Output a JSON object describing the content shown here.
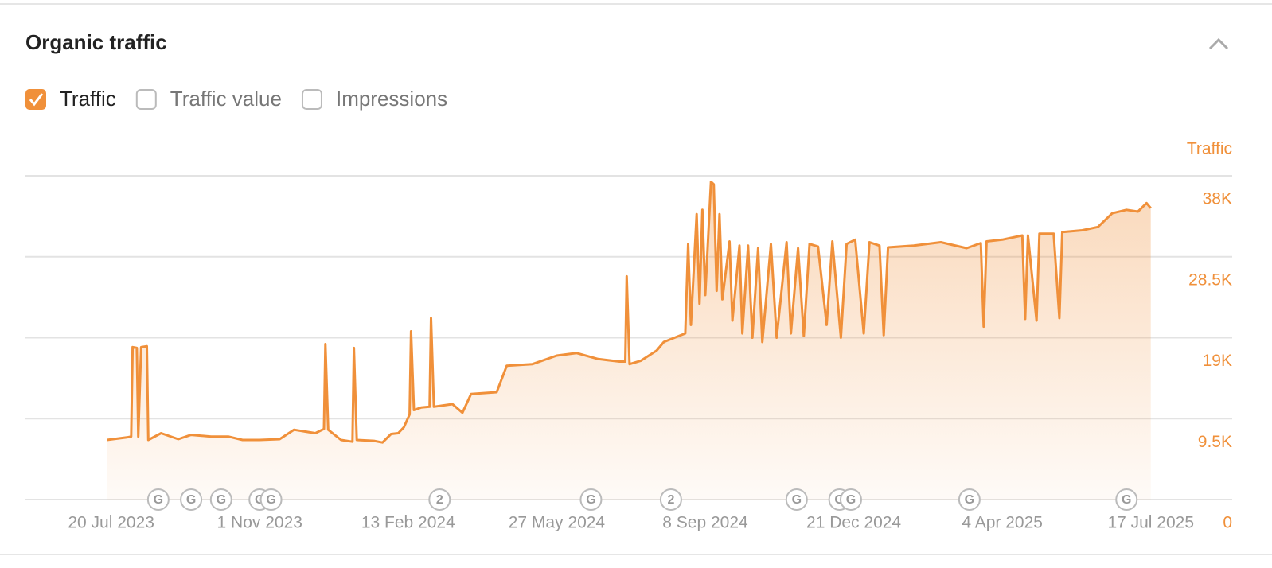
{
  "chart_data": {
    "type": "area",
    "title": "Organic traffic",
    "controls": [
      {
        "label": "Traffic",
        "checked": true
      },
      {
        "label": "Traffic value",
        "checked": false
      },
      {
        "label": "Impressions",
        "checked": false
      }
    ],
    "y_label": "Traffic",
    "color": "#f0903a",
    "grid": true,
    "ylim": [
      0,
      38000
    ],
    "yticks": [
      0,
      {
        "value": 9500,
        "label": "9.5K"
      },
      {
        "value": 19000,
        "label": "19K"
      },
      {
        "value": 28500,
        "label": "28.5K"
      },
      {
        "value": 38000,
        "label": "38K"
      }
    ],
    "xlim": [
      "2023-05-21",
      "2025-09-12"
    ],
    "xticks": [
      {
        "value": "2023-07-20",
        "label": "20 Jul 2023"
      },
      {
        "value": "2023-11-01",
        "label": "1 Nov 2023"
      },
      {
        "value": "2024-02-13",
        "label": "13 Feb 2024"
      },
      {
        "value": "2024-05-27",
        "label": "27 May 2024"
      },
      {
        "value": "2024-09-08",
        "label": "8 Sep 2024"
      },
      {
        "value": "2024-12-21",
        "label": "21 Dec 2024"
      },
      {
        "value": "2025-04-04",
        "label": "4 Apr 2025"
      },
      {
        "value": "2025-07-17",
        "label": "17 Jul 2025"
      }
    ],
    "annotations": [
      {
        "x": "2023-08-22",
        "label": "G"
      },
      {
        "x": "2023-09-14",
        "label": "G"
      },
      {
        "x": "2023-10-05",
        "label": "G"
      },
      {
        "x": "2023-11-01",
        "label": "G"
      },
      {
        "x": "2023-11-09",
        "label": "G"
      },
      {
        "x": "2024-03-06",
        "label": "2"
      },
      {
        "x": "2024-06-20",
        "label": "G"
      },
      {
        "x": "2024-08-15",
        "label": "2"
      },
      {
        "x": "2024-11-11",
        "label": "G"
      },
      {
        "x": "2024-12-11",
        "label": "G"
      },
      {
        "x": "2024-12-19",
        "label": "G"
      },
      {
        "x": "2025-03-12",
        "label": "G"
      },
      {
        "x": "2025-06-30",
        "label": "G"
      }
    ],
    "x": [
      "2023-07-17",
      "2023-07-24",
      "2023-07-31",
      "2023-08-03",
      "2023-08-04",
      "2023-08-07",
      "2023-08-08",
      "2023-08-10",
      "2023-08-14",
      "2023-08-15",
      "2023-08-24",
      "2023-09-05",
      "2023-09-14",
      "2023-09-28",
      "2023-10-10",
      "2023-10-20",
      "2023-11-01",
      "2023-11-15",
      "2023-11-25",
      "2023-12-10",
      "2023-12-16",
      "2023-12-17",
      "2023-12-19",
      "2023-12-28",
      "2024-01-05",
      "2024-01-06",
      "2024-01-08",
      "2024-01-20",
      "2024-01-26",
      "2024-02-01",
      "2024-02-06",
      "2024-02-10",
      "2024-02-14",
      "2024-02-15",
      "2024-02-17",
      "2024-02-22",
      "2024-02-28",
      "2024-02-29",
      "2024-03-02",
      "2024-03-15",
      "2024-03-22",
      "2024-03-28",
      "2024-04-15",
      "2024-04-22",
      "2024-05-10",
      "2024-05-27",
      "2024-06-10",
      "2024-06-25",
      "2024-07-10",
      "2024-07-14",
      "2024-07-15",
      "2024-07-17",
      "2024-07-25",
      "2024-08-05",
      "2024-08-10",
      "2024-08-25",
      "2024-08-27",
      "2024-08-29",
      "2024-09-02",
      "2024-09-04",
      "2024-09-06",
      "2024-09-08",
      "2024-09-12",
      "2024-09-14",
      "2024-09-16",
      "2024-09-18",
      "2024-09-20",
      "2024-09-25",
      "2024-09-27",
      "2024-10-02",
      "2024-10-04",
      "2024-10-08",
      "2024-10-11",
      "2024-10-15",
      "2024-10-18",
      "2024-10-24",
      "2024-10-28",
      "2024-11-04",
      "2024-11-07",
      "2024-11-12",
      "2024-11-16",
      "2024-11-20",
      "2024-11-26",
      "2024-12-02",
      "2024-12-06",
      "2024-12-12",
      "2024-12-16",
      "2024-12-22",
      "2024-12-28",
      "2025-01-01",
      "2025-01-08",
      "2025-01-11",
      "2025-01-14",
      "2025-02-01",
      "2025-02-20",
      "2025-03-10",
      "2025-03-20",
      "2025-03-22",
      "2025-03-24",
      "2025-04-04",
      "2025-04-18",
      "2025-04-20",
      "2025-04-22",
      "2025-04-28",
      "2025-04-30",
      "2025-05-10",
      "2025-05-14",
      "2025-05-16",
      "2025-05-30",
      "2025-06-10",
      "2025-06-20",
      "2025-06-30",
      "2025-07-08",
      "2025-07-14",
      "2025-07-17"
    ],
    "values": [
      7000,
      7150,
      7300,
      7400,
      17900,
      17800,
      7400,
      17900,
      18000,
      7000,
      7800,
      7100,
      7600,
      7400,
      7400,
      7000,
      7000,
      7100,
      8200,
      7800,
      8300,
      18250,
      8200,
      7000,
      6800,
      17800,
      7000,
      6900,
      6700,
      7700,
      7800,
      8500,
      10000,
      19750,
      10500,
      10800,
      10900,
      21300,
      10900,
      11200,
      10200,
      12400,
      12600,
      15700,
      15900,
      16900,
      17200,
      16500,
      16200,
      16200,
      26200,
      15900,
      16300,
      17500,
      18500,
      19500,
      30000,
      20500,
      33500,
      23000,
      34000,
      24000,
      37300,
      37000,
      24500,
      33500,
      23500,
      30300,
      21000,
      29800,
      19500,
      29800,
      19000,
      29500,
      18500,
      30000,
      19000,
      30200,
      19500,
      29500,
      19200,
      30000,
      29700,
      20500,
      30300,
      19000,
      30000,
      30500,
      19500,
      30200,
      29800,
      19300,
      29600,
      29800,
      30200,
      29500,
      30100,
      20300,
      30300,
      30500,
      31000,
      21200,
      31000,
      21000,
      31200,
      31200,
      21300,
      31400,
      31600,
      32000,
      33600,
      34000,
      33800,
      34800,
      34200
    ]
  }
}
